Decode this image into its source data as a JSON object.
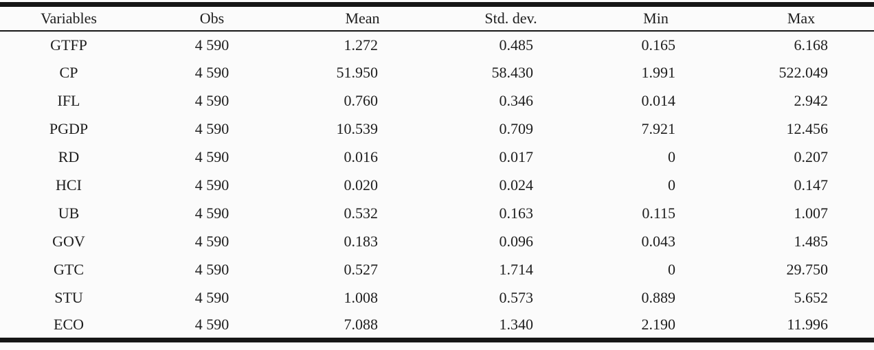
{
  "table": {
    "columns": [
      {
        "label": "Variables"
      },
      {
        "label": "Obs"
      },
      {
        "label": "Mean"
      },
      {
        "label": "Std. dev."
      },
      {
        "label": "Min"
      },
      {
        "label": "Max"
      }
    ],
    "rows": [
      [
        "GTFP",
        "4 590",
        "1.272",
        "0.485",
        "0.165",
        "6.168"
      ],
      [
        "CP",
        "4 590",
        "51.950",
        "58.430",
        "1.991",
        "522.049"
      ],
      [
        "IFL",
        "4 590",
        "0.760",
        "0.346",
        "0.014",
        "2.942"
      ],
      [
        "PGDP",
        "4 590",
        "10.539",
        "0.709",
        "7.921",
        "12.456"
      ],
      [
        "RD",
        "4 590",
        "0.016",
        "0.017",
        "0",
        "0.207"
      ],
      [
        "HCI",
        "4 590",
        "0.020",
        "0.024",
        "0",
        "0.147"
      ],
      [
        "UB",
        "4 590",
        "0.532",
        "0.163",
        "0.115",
        "1.007"
      ],
      [
        "GOV",
        "4 590",
        "0.183",
        "0.096",
        "0.043",
        "1.485"
      ],
      [
        "GTC",
        "4 590",
        "0.527",
        "1.714",
        "0",
        "29.750"
      ],
      [
        "STU",
        "4 590",
        "1.008",
        "0.573",
        "0.889",
        "5.652"
      ],
      [
        "ECO",
        "4 590",
        "7.088",
        "1.340",
        "2.190",
        "11.996"
      ]
    ]
  },
  "colors": {
    "background": "#fbfbfb",
    "text": "#1d1d1d",
    "border": "#161616"
  }
}
